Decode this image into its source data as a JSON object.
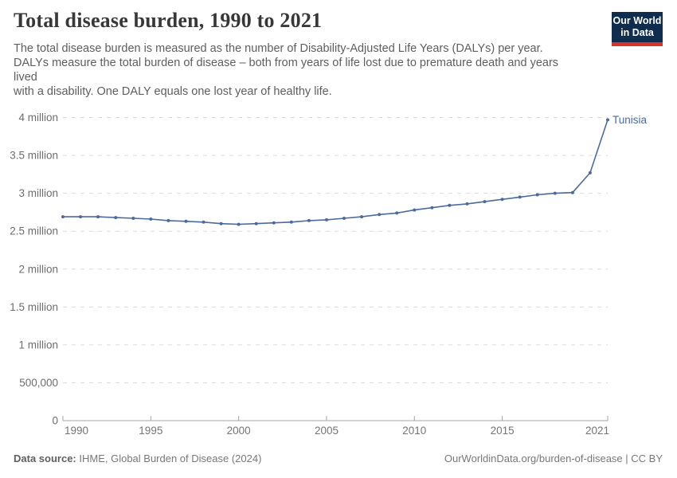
{
  "header": {
    "title": "Total disease burden, 1990 to 2021",
    "subtitle_lines": [
      "The total disease burden is measured as the number of Disability-Adjusted Life Years (DALYs) per year.",
      "DALYs measure the total burden of disease – both from years of life lost due to premature death and years",
      "lived",
      "with a disability. One DALY equals one lost year of healthy life."
    ],
    "logo": {
      "line1": "Our World",
      "line2": "in Data"
    }
  },
  "chart_data": {
    "type": "line",
    "title": "Total disease burden, 1990 to 2021",
    "unit": "Disability-Adjusted Life Years (DALYs) per year",
    "grid": "horizontal-dashed",
    "legend_position": "end-of-line-label",
    "xlim": [
      1990,
      2021
    ],
    "ylim": [
      0,
      4000000
    ],
    "x": [
      1990,
      1991,
      1992,
      1993,
      1994,
      1995,
      1996,
      1997,
      1998,
      1999,
      2000,
      2001,
      2002,
      2003,
      2004,
      2005,
      2006,
      2007,
      2008,
      2009,
      2010,
      2011,
      2012,
      2013,
      2014,
      2015,
      2016,
      2017,
      2018,
      2019,
      2020,
      2021
    ],
    "series": [
      {
        "name": "Tunisia",
        "color": "#4C6A9C",
        "values": [
          2690000,
          2690000,
          2690000,
          2680000,
          2670000,
          2660000,
          2640000,
          2630000,
          2620000,
          2600000,
          2590000,
          2600000,
          2610000,
          2620000,
          2640000,
          2650000,
          2670000,
          2690000,
          2720000,
          2740000,
          2780000,
          2810000,
          2840000,
          2860000,
          2890000,
          2920000,
          2950000,
          2980000,
          3000000,
          3010000,
          3270000,
          3970000
        ]
      }
    ],
    "y_ticks": [
      {
        "value": 4000000,
        "label": "4 million"
      },
      {
        "value": 3500000,
        "label": "3.5 million"
      },
      {
        "value": 3000000,
        "label": "3 million"
      },
      {
        "value": 2500000,
        "label": "2.5 million"
      },
      {
        "value": 2000000,
        "label": "2 million"
      },
      {
        "value": 1500000,
        "label": "1.5 million"
      },
      {
        "value": 1000000,
        "label": "1 million"
      },
      {
        "value": 500000,
        "label": "500,000"
      },
      {
        "value": 0,
        "label": "0"
      }
    ],
    "x_ticks": [
      {
        "value": 1990,
        "label": "1990"
      },
      {
        "value": 1995,
        "label": "1995"
      },
      {
        "value": 2000,
        "label": "2000"
      },
      {
        "value": 2005,
        "label": "2005"
      },
      {
        "value": 2010,
        "label": "2010"
      },
      {
        "value": 2015,
        "label": "2015"
      },
      {
        "value": 2021,
        "label": "2021"
      }
    ]
  },
  "footer": {
    "datasource_label": "Data source:",
    "datasource_value": " IHME, Global Burden of Disease (2024)",
    "link": "OurWorldinData.org/burden-of-disease",
    "license_suffix": " | CC BY"
  }
}
